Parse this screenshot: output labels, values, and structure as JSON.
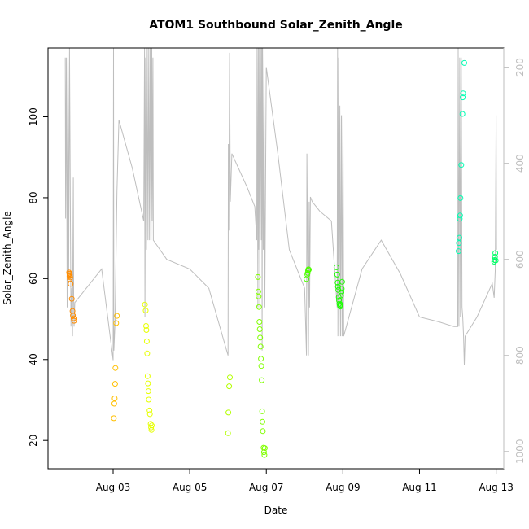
{
  "chart_data": {
    "type": "scatter",
    "title": "ATOM1 Southbound Solar_Zenith_Angle",
    "xlabel": "Date",
    "ylabel": "Solar_Zenith_Angle",
    "xlim": [
      1.3,
      13.2
    ],
    "ylim": [
      13,
      117
    ],
    "x_ticks": [
      3,
      5,
      7,
      9,
      11,
      13
    ],
    "x_tick_labels": [
      "Aug 03",
      "Aug 05",
      "Aug 07",
      "Aug 09",
      "Aug 11",
      "Aug 13"
    ],
    "y_ticks": [
      20,
      40,
      60,
      80,
      100
    ],
    "right_axis": {
      "ticks": [
        200,
        400,
        600,
        800,
        1000
      ],
      "lim": [
        1036,
        160
      ],
      "color": "#bebebe"
    },
    "series": [
      {
        "color": "#ff8c00",
        "points": [
          [
            1.85,
            61.5
          ],
          [
            1.86,
            61.2
          ],
          [
            1.87,
            60.9
          ],
          [
            1.86,
            60.6
          ],
          [
            1.88,
            60.3
          ],
          [
            1.87,
            59.9
          ],
          [
            1.89,
            58.7
          ],
          [
            1.92,
            55.0
          ],
          [
            1.94,
            52.0
          ],
          [
            1.95,
            50.9
          ],
          [
            1.97,
            50.2
          ],
          [
            1.98,
            49.6
          ]
        ]
      },
      {
        "color": "#ffbf00",
        "points": [
          [
            3.02,
            25.5
          ],
          [
            3.03,
            29.1
          ],
          [
            3.04,
            30.4
          ],
          [
            3.05,
            34.0
          ],
          [
            3.06,
            37.9
          ],
          [
            3.08,
            49.0
          ],
          [
            3.1,
            50.8
          ]
        ]
      },
      {
        "color": "#e6ff00",
        "points": [
          [
            3.83,
            53.6
          ],
          [
            3.85,
            52.1
          ],
          [
            3.86,
            48.3
          ],
          [
            3.87,
            47.3
          ],
          [
            3.88,
            44.5
          ],
          [
            3.89,
            41.5
          ],
          [
            3.9,
            35.9
          ],
          [
            3.91,
            34.1
          ],
          [
            3.92,
            32.2
          ],
          [
            3.93,
            30.1
          ],
          [
            3.95,
            27.4
          ],
          [
            3.96,
            26.5
          ],
          [
            3.98,
            24.1
          ],
          [
            3.99,
            23.2
          ],
          [
            4.0,
            22.6
          ],
          [
            4.01,
            23.7
          ]
        ]
      },
      {
        "color": "#b3ff00",
        "points": [
          [
            6.0,
            21.8
          ],
          [
            6.01,
            26.9
          ],
          [
            6.03,
            33.4
          ],
          [
            6.05,
            35.6
          ]
        ]
      },
      {
        "color": "#80ff00",
        "points": [
          [
            6.78,
            60.4
          ],
          [
            6.79,
            56.8
          ],
          [
            6.8,
            55.6
          ],
          [
            6.81,
            53.0
          ],
          [
            6.82,
            49.3
          ],
          [
            6.83,
            47.5
          ],
          [
            6.84,
            45.4
          ],
          [
            6.85,
            43.2
          ],
          [
            6.86,
            40.2
          ],
          [
            6.87,
            38.4
          ],
          [
            6.88,
            34.9
          ],
          [
            6.89,
            27.2
          ],
          [
            6.9,
            24.6
          ],
          [
            6.91,
            22.3
          ],
          [
            6.93,
            18.2
          ],
          [
            6.94,
            17.1
          ],
          [
            6.95,
            16.4
          ],
          [
            6.96,
            18.1
          ]
        ]
      },
      {
        "color": "#4dff00",
        "points": [
          [
            8.05,
            59.9
          ],
          [
            8.07,
            61.0
          ],
          [
            8.08,
            61.4
          ],
          [
            8.09,
            62.0
          ],
          [
            8.1,
            62.3
          ],
          [
            8.11,
            62.2
          ]
        ]
      },
      {
        "color": "#1aff00",
        "points": [
          [
            8.83,
            62.8
          ],
          [
            8.85,
            61.0
          ],
          [
            8.86,
            59.0
          ],
          [
            8.87,
            58.0
          ],
          [
            8.88,
            57.2
          ],
          [
            8.89,
            55.4
          ],
          [
            8.9,
            54.6
          ],
          [
            8.91,
            53.8
          ],
          [
            8.92,
            53.4
          ],
          [
            8.93,
            53.1
          ],
          [
            8.94,
            53.6
          ],
          [
            8.95,
            55.8
          ],
          [
            8.96,
            56.6
          ],
          [
            8.97,
            57.5
          ],
          [
            8.98,
            59.2
          ]
        ]
      },
      {
        "color": "#00ff66",
        "points": [
          [
            12.95,
            64.2
          ],
          [
            12.96,
            64.6
          ],
          [
            12.97,
            65.4
          ],
          [
            12.98,
            66.3
          ],
          [
            12.99,
            64.5
          ]
        ]
      },
      {
        "color": "#00ffb3",
        "points": [
          [
            12.02,
            66.8
          ],
          [
            12.03,
            68.8
          ],
          [
            12.04,
            70.1
          ],
          [
            12.05,
            74.8
          ],
          [
            12.06,
            75.6
          ],
          [
            12.07,
            79.9
          ],
          [
            12.09,
            88.1
          ],
          [
            12.12,
            100.7
          ],
          [
            12.13,
            104.8
          ],
          [
            12.14,
            105.8
          ],
          [
            12.17,
            113.3
          ]
        ]
      }
    ],
    "altitude_line": {
      "color": "#bebebe",
      "points": [
        [
          1.75,
          180
        ],
        [
          1.76,
          515
        ],
        [
          1.78,
          180
        ],
        [
          1.8,
          700
        ],
        [
          1.82,
          180
        ],
        [
          1.84,
          630
        ],
        [
          1.86,
          160
        ],
        [
          1.9,
          740
        ],
        [
          1.92,
          660
        ],
        [
          1.94,
          760
        ],
        [
          1.96,
          430
        ],
        [
          1.97,
          670
        ],
        [
          1.98,
          740
        ],
        [
          2.0,
          690
        ],
        [
          2.3,
          660
        ],
        [
          2.7,
          620
        ],
        [
          3.0,
          810
        ],
        [
          3.01,
          160
        ],
        [
          3.02,
          790
        ],
        [
          3.05,
          730
        ],
        [
          3.1,
          460
        ],
        [
          3.15,
          310
        ],
        [
          3.5,
          410
        ],
        [
          3.8,
          520
        ],
        [
          3.82,
          160
        ],
        [
          3.83,
          720
        ],
        [
          3.85,
          180
        ],
        [
          3.87,
          580
        ],
        [
          3.89,
          160
        ],
        [
          3.91,
          560
        ],
        [
          3.93,
          160
        ],
        [
          3.95,
          560
        ],
        [
          3.97,
          160
        ],
        [
          3.99,
          560
        ],
        [
          4.01,
          160
        ],
        [
          4.02,
          520
        ],
        [
          4.04,
          180
        ],
        [
          4.05,
          560
        ],
        [
          4.4,
          600
        ],
        [
          5.0,
          620
        ],
        [
          5.5,
          660
        ],
        [
          6.0,
          800
        ],
        [
          6.01,
          360
        ],
        [
          6.02,
          540
        ],
        [
          6.04,
          170
        ],
        [
          6.06,
          480
        ],
        [
          6.1,
          380
        ],
        [
          6.5,
          450
        ],
        [
          6.7,
          490
        ],
        [
          6.75,
          560
        ],
        [
          6.76,
          160
        ],
        [
          6.78,
          700
        ],
        [
          6.79,
          160
        ],
        [
          6.8,
          580
        ],
        [
          6.82,
          160
        ],
        [
          6.83,
          700
        ],
        [
          6.85,
          160
        ],
        [
          6.87,
          560
        ],
        [
          6.88,
          160
        ],
        [
          6.89,
          790
        ],
        [
          6.9,
          160
        ],
        [
          6.92,
          580
        ],
        [
          6.94,
          160
        ],
        [
          6.96,
          700
        ],
        [
          7.0,
          200
        ],
        [
          7.3,
          380
        ],
        [
          7.6,
          580
        ],
        [
          8.0,
          660
        ],
        [
          8.05,
          800
        ],
        [
          8.06,
          380
        ],
        [
          8.08,
          620
        ],
        [
          8.1,
          800
        ],
        [
          8.12,
          480
        ],
        [
          8.13,
          700
        ],
        [
          8.15,
          470
        ],
        [
          8.2,
          480
        ],
        [
          8.4,
          500
        ],
        [
          8.7,
          520
        ],
        [
          8.85,
          700
        ],
        [
          8.86,
          160
        ],
        [
          8.87,
          760
        ],
        [
          8.89,
          180
        ],
        [
          8.9,
          760
        ],
        [
          8.92,
          280
        ],
        [
          8.94,
          760
        ],
        [
          8.96,
          300
        ],
        [
          8.98,
          760
        ],
        [
          9.0,
          300
        ],
        [
          9.02,
          760
        ],
        [
          9.5,
          620
        ],
        [
          10.0,
          560
        ],
        [
          10.5,
          630
        ],
        [
          11.0,
          720
        ],
        [
          11.5,
          730
        ],
        [
          11.9,
          740
        ],
        [
          12.0,
          740
        ],
        [
          12.01,
          160
        ],
        [
          12.03,
          740
        ],
        [
          12.05,
          180
        ],
        [
          12.07,
          720
        ],
        [
          12.09,
          180
        ],
        [
          12.11,
          700
        ],
        [
          12.13,
          720
        ],
        [
          12.15,
          760
        ],
        [
          12.17,
          820
        ],
        [
          12.19,
          760
        ],
        [
          12.5,
          720
        ],
        [
          12.9,
          650
        ],
        [
          12.95,
          680
        ],
        [
          12.98,
          620
        ],
        [
          13.0,
          300
        ],
        [
          13.01,
          580
        ]
      ]
    }
  }
}
